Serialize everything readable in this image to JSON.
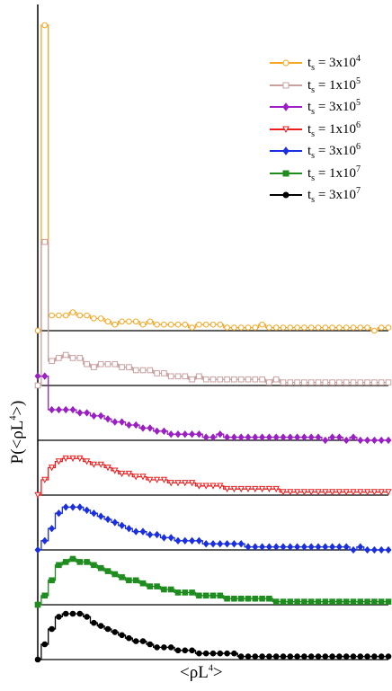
{
  "chart_data": {
    "type": "line",
    "title": "",
    "xlabel": "<ρL4>",
    "ylabel": "P(<ρL4>)",
    "grid": false,
    "legend_position": "top-right",
    "layout": "stacked-offset-panels",
    "x": [
      0,
      1,
      2,
      3,
      4,
      5,
      6,
      7,
      8,
      9,
      10,
      11,
      12,
      13,
      14,
      15,
      16,
      17,
      18,
      19,
      20,
      21,
      22,
      23,
      24,
      25,
      26,
      27,
      28,
      29,
      30,
      31,
      32,
      33,
      34,
      35,
      36,
      37,
      38,
      39,
      40,
      41,
      42,
      43,
      44,
      45,
      46,
      47,
      48,
      49,
      50
    ],
    "series": [
      {
        "name": "3x10^4",
        "legend": "t_s = 3x10^4",
        "color": "#f5a623",
        "marker": "circle-open",
        "values": [
          0,
          1.0,
          0.05,
          0.05,
          0.05,
          0.06,
          0.05,
          0.05,
          0.04,
          0.04,
          0.03,
          0.02,
          0.03,
          0.03,
          0.03,
          0.02,
          0.03,
          0.02,
          0.02,
          0.02,
          0.02,
          0.02,
          0.01,
          0.02,
          0.02,
          0.02,
          0.02,
          0.01,
          0.01,
          0.01,
          0.01,
          0.01,
          0.02,
          0.01,
          0.01,
          0.01,
          0.01,
          0.01,
          0.01,
          0.01,
          0.01,
          0.01,
          0.01,
          0.01,
          0.01,
          0.01,
          0.01,
          0.01,
          0.0,
          0.01,
          0.01
        ]
      },
      {
        "name": "1x10^5",
        "legend": "t_s = 1x10^5",
        "color": "#c8a0a0",
        "marker": "square-open",
        "values": [
          0,
          0.47,
          0.08,
          0.09,
          0.1,
          0.09,
          0.09,
          0.07,
          0.06,
          0.07,
          0.07,
          0.07,
          0.06,
          0.06,
          0.05,
          0.05,
          0.05,
          0.04,
          0.04,
          0.03,
          0.03,
          0.03,
          0.02,
          0.03,
          0.02,
          0.02,
          0.02,
          0.02,
          0.02,
          0.02,
          0.02,
          0.02,
          0.02,
          0.01,
          0.02,
          0.01,
          0.01,
          0.01,
          0.01,
          0.01,
          0.01,
          0.01,
          0.01,
          0.01,
          0.01,
          0.01,
          0.01,
          0.01,
          0.01,
          0.01,
          0.01
        ]
      },
      {
        "name": "3x10^5",
        "legend": "t_s = 3x10^5",
        "color": "#9b1fc4",
        "marker": "diamond",
        "values": [
          0.21,
          0.21,
          0.1,
          0.1,
          0.1,
          0.1,
          0.09,
          0.09,
          0.08,
          0.08,
          0.07,
          0.06,
          0.06,
          0.05,
          0.05,
          0.04,
          0.04,
          0.03,
          0.03,
          0.02,
          0.02,
          0.02,
          0.02,
          0.02,
          0.01,
          0.01,
          0.02,
          0.01,
          0.01,
          0.01,
          0.01,
          0.01,
          0.01,
          0.01,
          0.01,
          0.01,
          0.01,
          0.01,
          0.01,
          0.01,
          0.01,
          0.0,
          0.01,
          0.01,
          0.0,
          0.01,
          0.0,
          0.0,
          0.0,
          0.0,
          0.0
        ]
      },
      {
        "name": "1x10^6",
        "legend": "t_s = 1x10^6",
        "color": "#ee1c1c",
        "marker": "triangle-down-open",
        "values": [
          0,
          0.05,
          0.09,
          0.11,
          0.12,
          0.12,
          0.12,
          0.11,
          0.1,
          0.1,
          0.09,
          0.08,
          0.07,
          0.07,
          0.06,
          0.06,
          0.05,
          0.05,
          0.05,
          0.04,
          0.04,
          0.04,
          0.04,
          0.03,
          0.03,
          0.03,
          0.03,
          0.02,
          0.02,
          0.02,
          0.02,
          0.02,
          0.02,
          0.02,
          0.02,
          0.01,
          0.01,
          0.01,
          0.01,
          0.01,
          0.01,
          0.01,
          0.01,
          0.01,
          0.01,
          0.01,
          0.01,
          0.01,
          0.01,
          0.01,
          0.01
        ]
      },
      {
        "name": "3x10^6",
        "legend": "t_s = 3x10^6",
        "color": "#1a2fe0",
        "marker": "diamond",
        "values": [
          0,
          0.03,
          0.07,
          0.12,
          0.14,
          0.14,
          0.14,
          0.13,
          0.12,
          0.11,
          0.1,
          0.09,
          0.08,
          0.07,
          0.06,
          0.06,
          0.05,
          0.05,
          0.04,
          0.04,
          0.03,
          0.03,
          0.03,
          0.03,
          0.02,
          0.02,
          0.02,
          0.02,
          0.02,
          0.02,
          0.01,
          0.01,
          0.01,
          0.01,
          0.01,
          0.01,
          0.01,
          0.01,
          0.01,
          0.01,
          0.01,
          0.01,
          0.01,
          0.01,
          0.01,
          0.0,
          0.01,
          0.0,
          0.0,
          0.0,
          0.0
        ]
      },
      {
        "name": "1x10^7",
        "legend": "t_s = 1x10^7",
        "color": "#1e8c1e",
        "marker": "square",
        "values": [
          0,
          0.03,
          0.08,
          0.13,
          0.14,
          0.15,
          0.14,
          0.14,
          0.13,
          0.12,
          0.11,
          0.1,
          0.09,
          0.08,
          0.08,
          0.07,
          0.06,
          0.06,
          0.05,
          0.05,
          0.04,
          0.04,
          0.04,
          0.03,
          0.03,
          0.03,
          0.03,
          0.02,
          0.02,
          0.02,
          0.02,
          0.02,
          0.02,
          0.02,
          0.01,
          0.01,
          0.01,
          0.01,
          0.01,
          0.01,
          0.01,
          0.01,
          0.01,
          0.01,
          0.01,
          0.01,
          0.01,
          0.01,
          0.01,
          0.01,
          0.01
        ]
      },
      {
        "name": "3x10^7",
        "legend": "t_s = 3x10^7",
        "color": "#000000",
        "marker": "circle",
        "values": [
          0,
          0.05,
          0.1,
          0.14,
          0.15,
          0.15,
          0.15,
          0.14,
          0.12,
          0.11,
          0.1,
          0.09,
          0.08,
          0.07,
          0.06,
          0.06,
          0.05,
          0.04,
          0.04,
          0.04,
          0.03,
          0.03,
          0.03,
          0.02,
          0.02,
          0.02,
          0.02,
          0.02,
          0.02,
          0.01,
          0.01,
          0.01,
          0.01,
          0.01,
          0.01,
          0.01,
          0.01,
          0.01,
          0.01,
          0.01,
          0.01,
          0.01,
          0.01,
          0.01,
          0.01,
          0.01,
          0.01,
          0.01,
          0.01,
          0.01,
          0.01
        ]
      }
    ]
  }
}
